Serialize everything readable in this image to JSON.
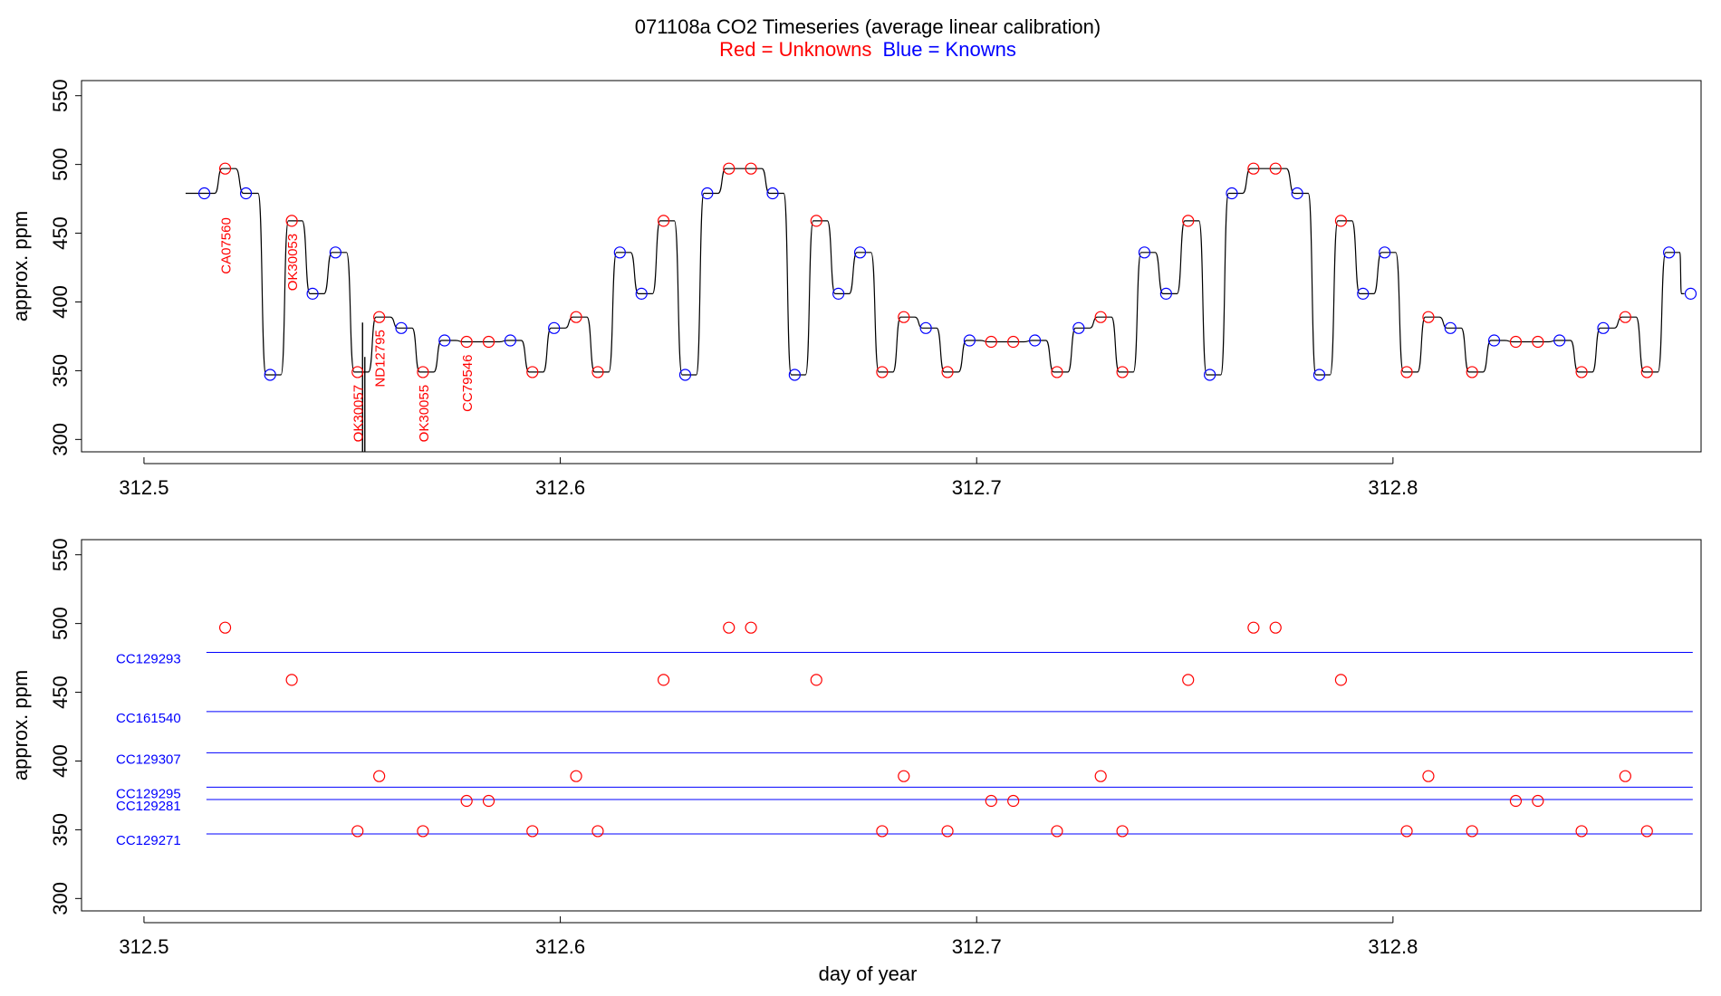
{
  "chart_data": {
    "type": "line",
    "title": "071108a   CO2 Timeseries (average linear calibration)",
    "legend": {
      "red_label": "Red = Unknowns",
      "blue_label": "Blue = Knowns"
    },
    "colors": {
      "unknown": "#ff0000",
      "known": "#0000ff",
      "trace": "#000000"
    },
    "xlabel": "day of year",
    "ylabel": "approx. ppm",
    "xlim": [
      312.485,
      312.874
    ],
    "ylim": [
      291,
      561
    ],
    "xticks": [
      "312.5",
      "312.6",
      "312.7",
      "312.8"
    ],
    "xtick_values": [
      312.5,
      312.6,
      312.7,
      312.8
    ],
    "yticks": [
      "300",
      "350",
      "400",
      "450",
      "500",
      "550"
    ],
    "ytick_values": [
      300,
      350,
      400,
      450,
      500,
      550
    ],
    "trace": {
      "start_x": 312.51,
      "start_y": 479,
      "end_x": 312.87,
      "end_y": 406,
      "spike": {
        "x": 312.5525,
        "y": 291
      }
    },
    "samples": [
      {
        "x": 312.5145,
        "y": 479,
        "kind": "known"
      },
      {
        "x": 312.5195,
        "y": 497,
        "kind": "unknown",
        "label": "CA07560"
      },
      {
        "x": 312.5245,
        "y": 479,
        "kind": "known"
      },
      {
        "x": 312.5303,
        "y": 347,
        "kind": "known"
      },
      {
        "x": 312.5355,
        "y": 459,
        "kind": "unknown",
        "label": "OK30053"
      },
      {
        "x": 312.5405,
        "y": 406,
        "kind": "known"
      },
      {
        "x": 312.546,
        "y": 436,
        "kind": "known"
      },
      {
        "x": 312.5513,
        "y": 349,
        "kind": "unknown",
        "label": "OK30057"
      },
      {
        "x": 312.5565,
        "y": 389,
        "kind": "unknown",
        "label": "ND12795"
      },
      {
        "x": 312.5618,
        "y": 381,
        "kind": "known"
      },
      {
        "x": 312.567,
        "y": 349,
        "kind": "unknown",
        "label": "OK30055"
      },
      {
        "x": 312.5722,
        "y": 372,
        "kind": "known"
      },
      {
        "x": 312.5775,
        "y": 371,
        "kind": "unknown",
        "label": "CC79546"
      },
      {
        "x": 312.5828,
        "y": 371,
        "kind": "unknown"
      },
      {
        "x": 312.588,
        "y": 372,
        "kind": "known"
      },
      {
        "x": 312.5933,
        "y": 349,
        "kind": "unknown"
      },
      {
        "x": 312.5985,
        "y": 381,
        "kind": "known"
      },
      {
        "x": 312.6038,
        "y": 389,
        "kind": "unknown"
      },
      {
        "x": 312.609,
        "y": 349,
        "kind": "unknown"
      },
      {
        "x": 312.6143,
        "y": 436,
        "kind": "known"
      },
      {
        "x": 312.6195,
        "y": 406,
        "kind": "known"
      },
      {
        "x": 312.6248,
        "y": 459,
        "kind": "unknown"
      },
      {
        "x": 312.63,
        "y": 347,
        "kind": "known"
      },
      {
        "x": 312.6353,
        "y": 479,
        "kind": "known"
      },
      {
        "x": 312.6405,
        "y": 497,
        "kind": "unknown"
      },
      {
        "x": 312.6458,
        "y": 497,
        "kind": "unknown"
      },
      {
        "x": 312.651,
        "y": 479,
        "kind": "known"
      },
      {
        "x": 312.6563,
        "y": 347,
        "kind": "known"
      },
      {
        "x": 312.6615,
        "y": 459,
        "kind": "unknown"
      },
      {
        "x": 312.6668,
        "y": 406,
        "kind": "known"
      },
      {
        "x": 312.672,
        "y": 436,
        "kind": "known"
      },
      {
        "x": 312.6773,
        "y": 349,
        "kind": "unknown"
      },
      {
        "x": 312.6825,
        "y": 389,
        "kind": "unknown"
      },
      {
        "x": 312.6878,
        "y": 381,
        "kind": "known"
      },
      {
        "x": 312.693,
        "y": 349,
        "kind": "unknown"
      },
      {
        "x": 312.6983,
        "y": 372,
        "kind": "known"
      },
      {
        "x": 312.7035,
        "y": 371,
        "kind": "unknown"
      },
      {
        "x": 312.7088,
        "y": 371,
        "kind": "unknown"
      },
      {
        "x": 312.714,
        "y": 372,
        "kind": "known"
      },
      {
        "x": 312.7193,
        "y": 349,
        "kind": "unknown"
      },
      {
        "x": 312.7245,
        "y": 381,
        "kind": "known"
      },
      {
        "x": 312.7298,
        "y": 389,
        "kind": "unknown"
      },
      {
        "x": 312.735,
        "y": 349,
        "kind": "unknown"
      },
      {
        "x": 312.7403,
        "y": 436,
        "kind": "known"
      },
      {
        "x": 312.7455,
        "y": 406,
        "kind": "known"
      },
      {
        "x": 312.7508,
        "y": 459,
        "kind": "unknown"
      },
      {
        "x": 312.756,
        "y": 347,
        "kind": "known"
      },
      {
        "x": 312.7613,
        "y": 479,
        "kind": "known"
      },
      {
        "x": 312.7665,
        "y": 497,
        "kind": "unknown"
      },
      {
        "x": 312.7718,
        "y": 497,
        "kind": "unknown"
      },
      {
        "x": 312.777,
        "y": 479,
        "kind": "known"
      },
      {
        "x": 312.7823,
        "y": 347,
        "kind": "known"
      },
      {
        "x": 312.7875,
        "y": 459,
        "kind": "unknown"
      },
      {
        "x": 312.7928,
        "y": 406,
        "kind": "known"
      },
      {
        "x": 312.798,
        "y": 436,
        "kind": "known"
      },
      {
        "x": 312.8033,
        "y": 349,
        "kind": "unknown"
      },
      {
        "x": 312.8085,
        "y": 389,
        "kind": "unknown"
      },
      {
        "x": 312.8138,
        "y": 381,
        "kind": "known"
      },
      {
        "x": 312.819,
        "y": 349,
        "kind": "unknown"
      },
      {
        "x": 312.8243,
        "y": 372,
        "kind": "known"
      },
      {
        "x": 312.8295,
        "y": 371,
        "kind": "unknown"
      },
      {
        "x": 312.8348,
        "y": 371,
        "kind": "unknown"
      },
      {
        "x": 312.84,
        "y": 372,
        "kind": "known"
      },
      {
        "x": 312.8453,
        "y": 349,
        "kind": "unknown"
      },
      {
        "x": 312.8505,
        "y": 381,
        "kind": "known"
      },
      {
        "x": 312.8558,
        "y": 389,
        "kind": "unknown"
      },
      {
        "x": 312.861,
        "y": 349,
        "kind": "unknown"
      },
      {
        "x": 312.8663,
        "y": 436,
        "kind": "known"
      },
      {
        "x": 312.8715,
        "y": 406,
        "kind": "known"
      }
    ],
    "standards": [
      {
        "name": "CC129293",
        "value": 479
      },
      {
        "name": "CC161540",
        "value": 436
      },
      {
        "name": "CC129307",
        "value": 406
      },
      {
        "name": "CC129295",
        "value": 381
      },
      {
        "name": "CC129281",
        "value": 372
      },
      {
        "name": "CC129271",
        "value": 347
      }
    ],
    "standards_x_range": [
      312.515,
      312.872
    ]
  }
}
